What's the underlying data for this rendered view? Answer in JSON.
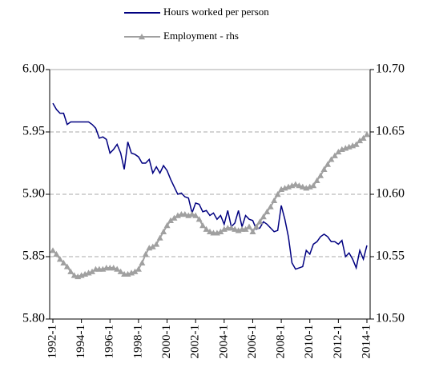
{
  "chart_data": {
    "type": "line",
    "categories": [
      "1992-1",
      null,
      null,
      null,
      null,
      null,
      null,
      null,
      "1994-1",
      null,
      null,
      null,
      null,
      null,
      null,
      null,
      "1996-1",
      null,
      null,
      null,
      null,
      null,
      null,
      null,
      "1998-1",
      null,
      null,
      null,
      null,
      null,
      null,
      null,
      "2000-1",
      null,
      null,
      null,
      null,
      null,
      null,
      null,
      "2002-1",
      null,
      null,
      null,
      null,
      null,
      null,
      null,
      "2004-1",
      null,
      null,
      null,
      null,
      null,
      null,
      null,
      "2006-1",
      null,
      null,
      null,
      null,
      null,
      null,
      null,
      "2008-1",
      null,
      null,
      null,
      null,
      null,
      null,
      null,
      "2010-1",
      null,
      null,
      null,
      null,
      null,
      null,
      null,
      "2012-1",
      null,
      null,
      null,
      null,
      null,
      null,
      null,
      "2014-1"
    ],
    "series": [
      {
        "name": "Hours worked per person",
        "color": "#000080",
        "values": [
          5.973,
          5.968,
          5.965,
          5.965,
          5.956,
          5.958,
          5.958,
          5.958,
          5.958,
          5.958,
          5.958,
          5.956,
          5.953,
          5.945,
          5.946,
          5.944,
          5.933,
          5.936,
          5.94,
          5.933,
          5.92,
          5.942,
          5.933,
          5.932,
          5.93,
          5.925,
          5.925,
          5.928,
          5.917,
          5.922,
          5.917,
          5.923,
          5.919,
          5.912,
          5.906,
          5.9,
          5.901,
          5.898,
          5.897,
          5.885,
          5.893,
          5.892,
          5.886,
          5.887,
          5.883,
          5.885,
          5.88,
          5.883,
          5.876,
          5.887,
          5.874,
          5.877,
          5.887,
          5.874,
          5.883,
          5.88,
          5.879,
          5.872,
          5.873,
          5.878,
          5.876,
          5.873,
          5.87,
          5.871,
          5.891,
          5.88,
          5.866,
          5.845,
          5.84,
          5.841,
          5.842,
          5.855,
          5.852,
          5.86,
          5.862,
          5.866,
          5.868,
          5.866,
          5.862,
          5.862,
          5.86,
          5.863,
          5.85,
          5.853,
          5.848,
          5.841,
          5.855,
          5.848,
          5.859
        ]
      },
      {
        "name": "Employment - rhs",
        "color": "#a0a0a0",
        "axis": "y2",
        "marker": "triangle",
        "values": [
          10.555,
          10.552,
          10.548,
          10.545,
          10.542,
          10.538,
          10.535,
          10.534,
          10.535,
          10.536,
          10.537,
          10.538,
          10.54,
          10.54,
          10.54,
          10.541,
          10.541,
          10.541,
          10.54,
          10.538,
          10.536,
          10.536,
          10.537,
          10.538,
          10.54,
          10.545,
          10.552,
          10.557,
          10.558,
          10.56,
          10.565,
          10.57,
          10.575,
          10.579,
          10.581,
          10.583,
          10.584,
          10.584,
          10.583,
          10.584,
          10.583,
          10.58,
          10.575,
          10.572,
          10.57,
          10.569,
          10.569,
          10.57,
          10.572,
          10.573,
          10.573,
          10.572,
          10.571,
          10.572,
          10.572,
          10.574,
          10.57,
          10.574,
          10.578,
          10.582,
          10.586,
          10.59,
          10.595,
          10.6,
          10.604,
          10.605,
          10.606,
          10.607,
          10.608,
          10.607,
          10.606,
          10.605,
          10.606,
          10.607,
          10.611,
          10.615,
          10.62,
          10.624,
          10.628,
          10.631,
          10.634,
          10.636,
          10.637,
          10.638,
          10.639,
          10.64,
          10.643,
          10.645,
          10.648
        ]
      }
    ],
    "ylim": [
      5.8,
      6.0
    ],
    "yticks": [
      {
        "value": 5.8,
        "label": "5.80"
      },
      5.85,
      {
        "value": 5.9,
        "label": "5.90"
      },
      5.95,
      {
        "value": 6.0,
        "label": "6.00"
      }
    ],
    "y2lim": [
      10.5,
      10.7
    ],
    "y2ticks": [
      {
        "value": 10.5,
        "label": "10.50"
      },
      10.55,
      {
        "value": 10.6,
        "label": "10.60"
      },
      10.65,
      {
        "value": 10.7,
        "label": "10.70"
      }
    ],
    "grid": true
  }
}
